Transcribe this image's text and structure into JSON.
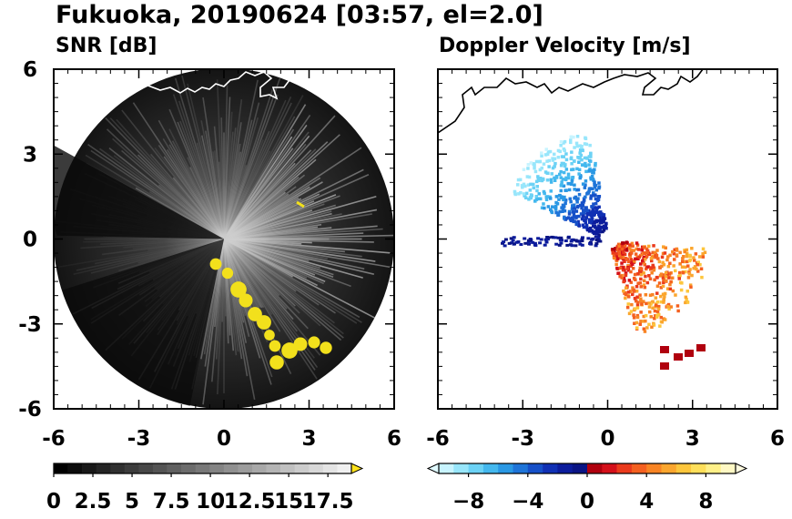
{
  "title": "Fukuoka, 20190624 [03:57, el=2.0]",
  "colors": {
    "snr_background": "#0d0d0d",
    "snr_highlight": "#f2e01c",
    "coastline_snr": "#ffffff",
    "coastline_doppler": "#000000",
    "frame": "#000000"
  },
  "chart_data": [
    {
      "type": "heatmap",
      "name": "snr-panel",
      "title": "SNR [dB]",
      "xlim": [
        -6,
        6
      ],
      "ylim": [
        -6,
        6
      ],
      "xticks": [
        "-6",
        "-3",
        "0",
        "3",
        "6"
      ],
      "yticks": [
        "6",
        "3",
        "0",
        "-3",
        "-6"
      ],
      "x_tick_values": [
        -6,
        -3,
        0,
        3,
        6
      ],
      "y_tick_values": [
        6,
        3,
        0,
        -3,
        -6
      ],
      "range_radius": 6,
      "colorbar": {
        "min": 0,
        "max": 19,
        "extend": "max",
        "tick_values": [
          0,
          2.5,
          5,
          7.5,
          10,
          12.5,
          15,
          17.5
        ],
        "tick_labels": [
          "0",
          "2.5",
          "5",
          "7.5",
          "10",
          "12.5",
          "15",
          "17.5"
        ],
        "colors": [
          "#000000",
          "#0c0c0c",
          "#181818",
          "#242424",
          "#303030",
          "#3c3c3c",
          "#484848",
          "#545454",
          "#606060",
          "#6c6c6c",
          "#787878",
          "#848484",
          "#909090",
          "#9c9c9c",
          "#a8a8a8",
          "#b4b4b4",
          "#c0c0c0",
          "#cccccc",
          "#d8d8d8",
          "#e4e4e4",
          "#f0f0f0"
        ],
        "extend_color": "#ffe31a"
      }
    },
    {
      "type": "heatmap",
      "name": "doppler-panel",
      "title": "Doppler Velocity [m/s]",
      "xlim": [
        -6,
        6
      ],
      "ylim": [
        -6,
        6
      ],
      "xticks": [
        "-6",
        "-3",
        "0",
        "3",
        "6"
      ],
      "x_tick_values": [
        -6,
        -3,
        0,
        3,
        6
      ],
      "colorbar": {
        "min": -10,
        "max": 10,
        "extend": "both",
        "tick_values": [
          -8,
          -4,
          0,
          4,
          8
        ],
        "tick_labels": [
          "−8",
          "−4",
          "0",
          "4",
          "8"
        ],
        "colors": [
          "#c8f4ff",
          "#98e6fb",
          "#6cd2f5",
          "#44b8ee",
          "#2a98e4",
          "#1e74d8",
          "#1650c8",
          "#1030b4",
          "#0c1c9c",
          "#0a1484",
          "#b0000e",
          "#d4101a",
          "#ea3a1c",
          "#f46020",
          "#f88424",
          "#fba62e",
          "#fdc63c",
          "#fedf5a",
          "#fff088",
          "#fff8c4"
        ],
        "extend_low_color": "#e0faff",
        "extend_high_color": "#fffbe0"
      }
    }
  ]
}
